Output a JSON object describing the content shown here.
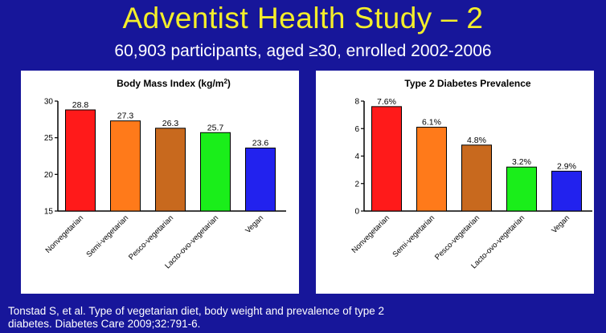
{
  "slide": {
    "title": "Adventist Health Study – 2",
    "subtitle": "60,903 participants, aged ≥30, enrolled 2002-2006",
    "citation_line1": "Tonstad S, et al. Type of vegetarian diet, body weight and prevalence of type 2",
    "citation_line2": "diabetes. Diabetes Care 2009;32:791-6."
  },
  "chart_data": [
    {
      "type": "bar",
      "title": "Body Mass Index (kg/m",
      "title_superscript": "2",
      "title_close": ")",
      "categories": [
        "Nonvegetarian",
        "Semi-vegetarian",
        "Pesco-vegetarian",
        "Lacto-ovo-vegetarian",
        "Vegan"
      ],
      "values": [
        28.8,
        27.3,
        26.3,
        25.7,
        23.6
      ],
      "value_labels": [
        "28.8",
        "27.3",
        "26.3",
        "25.7",
        "23.6"
      ],
      "colors": [
        "#ff1a1a",
        "#ff7a1a",
        "#c8691e",
        "#1aee1a",
        "#2222ee"
      ],
      "ylim": [
        15,
        30
      ],
      "yticks": [
        15,
        20,
        25,
        30
      ],
      "ytick_labels": [
        "15",
        "20",
        "25",
        "30"
      ],
      "xlabel": "",
      "ylabel": ""
    },
    {
      "type": "bar",
      "title": "Type 2 Diabetes Prevalence",
      "categories": [
        "Nonvegetarian",
        "Semi-vegetarian",
        "Pesco-vegetarian",
        "Lacto-ovo-vegetarian",
        "Vegan"
      ],
      "values": [
        7.6,
        6.1,
        4.8,
        3.2,
        2.9
      ],
      "value_labels": [
        "7.6%",
        "6.1%",
        "4.8%",
        "3.2%",
        "2.9%"
      ],
      "colors": [
        "#ff1a1a",
        "#ff7a1a",
        "#c8691e",
        "#1aee1a",
        "#2222ee"
      ],
      "ylim": [
        0,
        8
      ],
      "yticks": [
        0,
        2,
        4,
        6,
        8
      ],
      "ytick_labels": [
        "0",
        "2",
        "4",
        "6",
        "8"
      ],
      "xlabel": "",
      "ylabel": ""
    }
  ]
}
